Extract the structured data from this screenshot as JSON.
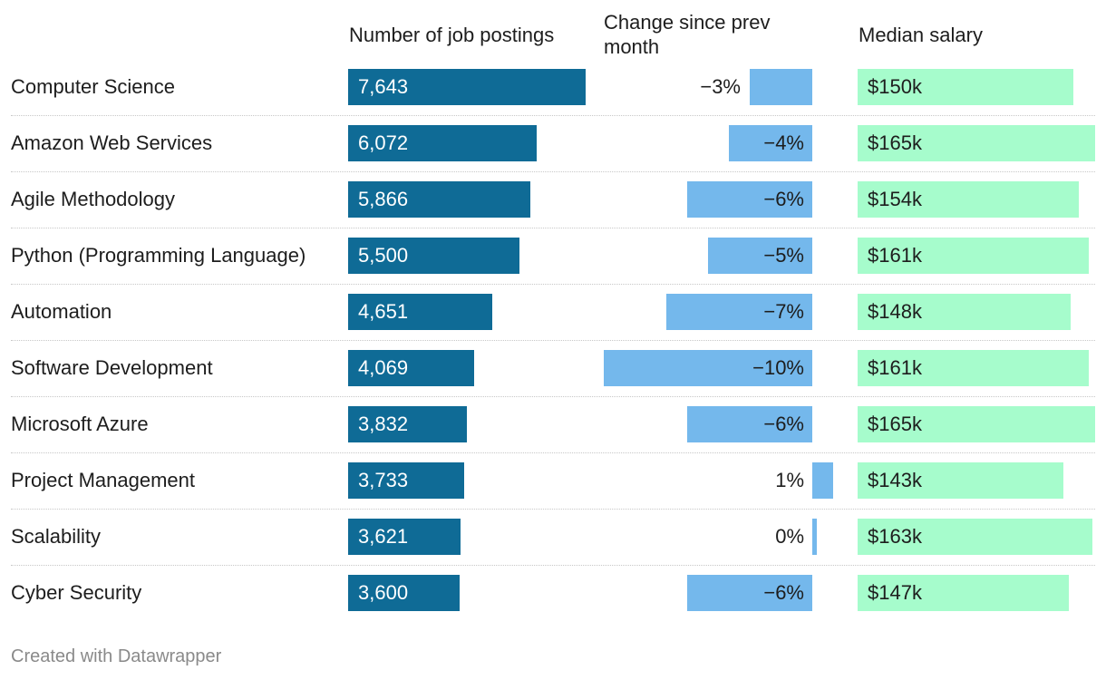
{
  "headers": {
    "postings": "Number of job postings",
    "change": "Change since prev month",
    "salary": "Median salary"
  },
  "chart_data": {
    "type": "table",
    "columns": [
      "Number of job postings",
      "Change since prev month",
      "Median salary"
    ],
    "rows": [
      {
        "skill": "Computer Science",
        "postings": 7643,
        "postings_label": "7,643",
        "change": -3,
        "change_label": "−3%",
        "salary": 150,
        "salary_label": "$150k"
      },
      {
        "skill": "Amazon Web Services",
        "postings": 6072,
        "postings_label": "6,072",
        "change": -4,
        "change_label": "−4%",
        "salary": 165,
        "salary_label": "$165k"
      },
      {
        "skill": "Agile Methodology",
        "postings": 5866,
        "postings_label": "5,866",
        "change": -6,
        "change_label": "−6%",
        "salary": 154,
        "salary_label": "$154k"
      },
      {
        "skill": "Python (Programming Language)",
        "postings": 5500,
        "postings_label": "5,500",
        "change": -5,
        "change_label": "−5%",
        "salary": 161,
        "salary_label": "$161k"
      },
      {
        "skill": "Automation",
        "postings": 4651,
        "postings_label": "4,651",
        "change": -7,
        "change_label": "−7%",
        "salary": 148,
        "salary_label": "$148k"
      },
      {
        "skill": "Software Development",
        "postings": 4069,
        "postings_label": "4,069",
        "change": -10,
        "change_label": "−10%",
        "salary": 161,
        "salary_label": "$161k"
      },
      {
        "skill": "Microsoft Azure",
        "postings": 3832,
        "postings_label": "3,832",
        "change": -6,
        "change_label": "−6%",
        "salary": 165,
        "salary_label": "$165k"
      },
      {
        "skill": "Project Management",
        "postings": 3733,
        "postings_label": "3,733",
        "change": 1,
        "change_label": "1%",
        "salary": 143,
        "salary_label": "$143k"
      },
      {
        "skill": "Scalability",
        "postings": 3621,
        "postings_label": "3,621",
        "change": 0.2,
        "change_label": "0%",
        "salary": 163,
        "salary_label": "$163k"
      },
      {
        "skill": "Cyber Security",
        "postings": 3600,
        "postings_label": "3,600",
        "change": -6,
        "change_label": "−6%",
        "salary": 147,
        "salary_label": "$147k"
      }
    ]
  },
  "footer": "Created with Datawrapper",
  "colors": {
    "postings_bar": "#0f6b96",
    "change_bar": "#74b8ec",
    "salary_bar": "#a6fccc"
  }
}
